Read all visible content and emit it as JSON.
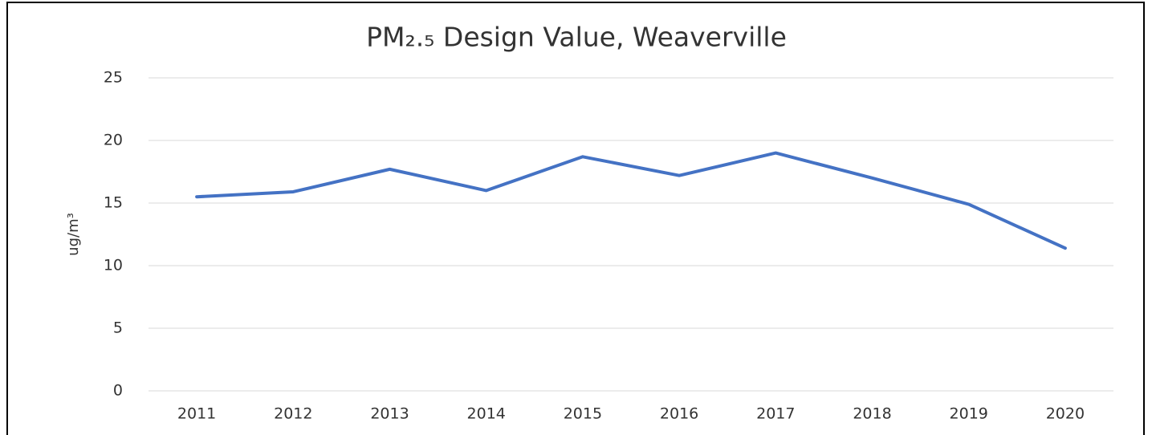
{
  "chart_data": {
    "type": "line",
    "title": "PM₂.₅ Design Value, Weaverville",
    "y_label": "ug/m³",
    "categories": [
      "2011",
      "2012",
      "2013",
      "2014",
      "2015",
      "2016",
      "2017",
      "2018",
      "2019",
      "2020"
    ],
    "series": [
      {
        "name": "PM2.5 Design Value",
        "color": "#4472c4",
        "values": [
          15.5,
          15.9,
          17.7,
          16.0,
          18.7,
          17.2,
          19.0,
          17.0,
          14.9,
          11.4
        ]
      }
    ],
    "ylim": [
      0,
      25
    ],
    "yticks": [
      0,
      5,
      10,
      15,
      20,
      25
    ],
    "grid": true
  }
}
